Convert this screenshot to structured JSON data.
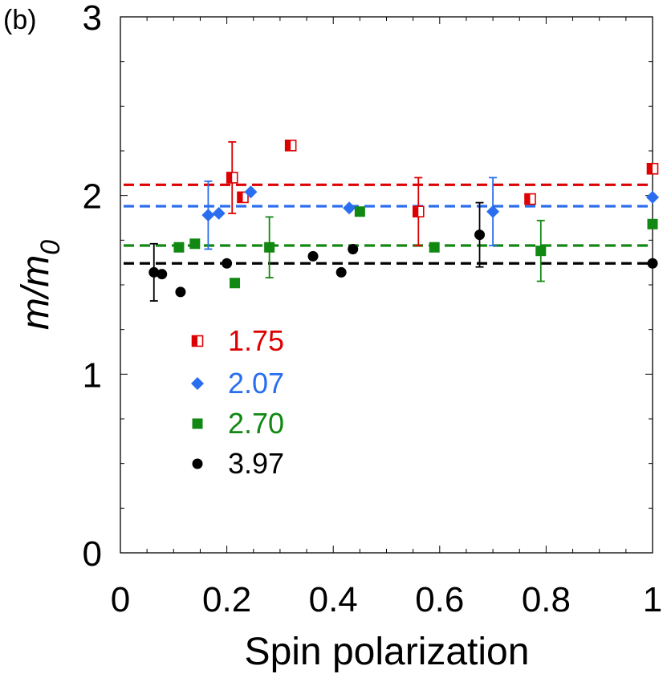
{
  "chart_data": {
    "type": "scatter",
    "panel_label": "(b)",
    "xlabel": "Spin polarization",
    "ylabel": {
      "main": "m/m",
      "sub": "0"
    },
    "xlim": [
      0,
      1
    ],
    "ylim": [
      0,
      3
    ],
    "x_ticks": [
      "0",
      "0.2",
      "0.4",
      "0.6",
      "0.8",
      "1"
    ],
    "y_ticks": [
      "0",
      "1",
      "2",
      "3"
    ],
    "series": [
      {
        "name": "1.75",
        "color": "#dd0000",
        "marker": "half-square",
        "hline": 2.06,
        "points": [
          {
            "x": 0.21,
            "y": 2.1,
            "err": 0.2
          },
          {
            "x": 0.23,
            "y": 1.99
          },
          {
            "x": 0.32,
            "y": 2.28
          },
          {
            "x": 0.56,
            "y": 1.91,
            "err": 0.19
          },
          {
            "x": 0.77,
            "y": 1.98
          },
          {
            "x": 1.0,
            "y": 2.15
          }
        ]
      },
      {
        "name": "2.07",
        "color": "#2a6ef0",
        "marker": "diamond",
        "hline": 1.94,
        "points": [
          {
            "x": 0.165,
            "y": 1.89,
            "err": 0.19
          },
          {
            "x": 0.185,
            "y": 1.9
          },
          {
            "x": 0.245,
            "y": 2.02
          },
          {
            "x": 0.43,
            "y": 1.93
          },
          {
            "x": 0.7,
            "y": 1.91,
            "err": 0.19
          },
          {
            "x": 1.0,
            "y": 1.99
          }
        ]
      },
      {
        "name": "2.70",
        "color": "#118811",
        "marker": "square",
        "hline": 1.72,
        "points": [
          {
            "x": 0.11,
            "y": 1.71
          },
          {
            "x": 0.14,
            "y": 1.73
          },
          {
            "x": 0.215,
            "y": 1.51
          },
          {
            "x": 0.28,
            "y": 1.71,
            "err": 0.17
          },
          {
            "x": 0.45,
            "y": 1.91
          },
          {
            "x": 0.59,
            "y": 1.71
          },
          {
            "x": 0.79,
            "y": 1.69,
            "err": 0.17
          },
          {
            "x": 1.0,
            "y": 1.84
          }
        ]
      },
      {
        "name": "3.97",
        "color": "#000000",
        "marker": "circle",
        "hline": 1.62,
        "points": [
          {
            "x": 0.063,
            "y": 1.57,
            "err": 0.16
          },
          {
            "x": 0.078,
            "y": 1.56
          },
          {
            "x": 0.113,
            "y": 1.46
          },
          {
            "x": 0.2,
            "y": 1.62
          },
          {
            "x": 0.362,
            "y": 1.66
          },
          {
            "x": 0.415,
            "y": 1.57
          },
          {
            "x": 0.437,
            "y": 1.7
          },
          {
            "x": 0.675,
            "y": 1.78,
            "err": 0.18
          },
          {
            "x": 1.0,
            "y": 1.62
          }
        ]
      }
    ]
  }
}
